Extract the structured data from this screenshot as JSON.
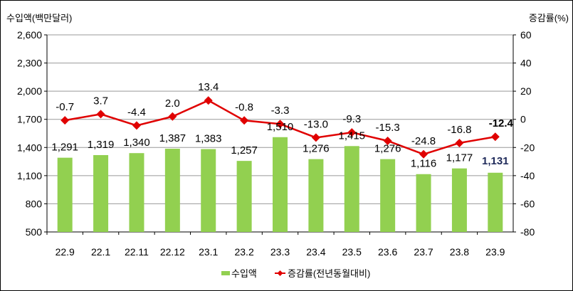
{
  "chart_data": {
    "type": "bar+line",
    "categories": [
      "22.9",
      "22.1",
      "22.11",
      "22.12",
      "23.1",
      "23.2",
      "23.3",
      "23.4",
      "23.5",
      "23.6",
      "23.7",
      "23.8",
      "23.9"
    ],
    "series": [
      {
        "name": "수입액",
        "type": "bar",
        "axis": "left",
        "color": "#92D050",
        "values": [
          1291,
          1319,
          1340,
          1387,
          1383,
          1257,
          1510,
          1276,
          1415,
          1276,
          1116,
          1177,
          1131
        ],
        "labels": [
          "1,291",
          "1,319",
          "1,340",
          "1,387",
          "1,383",
          "1,257",
          "1,510",
          "1,276",
          "1,415",
          "1,276",
          "1,116",
          "1,177",
          "1,131"
        ]
      },
      {
        "name": "증감률(전년동월대비)",
        "type": "line",
        "axis": "right",
        "color": "#E00000",
        "values": [
          -0.7,
          3.7,
          -4.4,
          2.0,
          13.4,
          -0.8,
          -3.3,
          -13.0,
          -9.3,
          -15.3,
          -24.8,
          -16.8,
          -12.4
        ],
        "labels": [
          "-0.7",
          "3.7",
          "-4.4",
          "2.0",
          "13.4",
          "-0.8",
          "-3.3",
          "-13.0",
          "-9.3",
          "-15.3",
          "-24.8",
          "-16.8",
          "-12.4"
        ]
      }
    ],
    "ylabel_left": "수입액(백만달러)",
    "ylabel_right": "증감률(%)",
    "ylim_left": [
      500,
      2600
    ],
    "ylim_right": [
      -80,
      60
    ],
    "yticks_left": [
      "2,600",
      "2,300",
      "2,000",
      "1,700",
      "1,400",
      "1,100",
      "800",
      "500"
    ],
    "yticks_right": [
      "60",
      "40",
      "20",
      "0",
      "-20",
      "-40",
      "-60",
      "-80"
    ],
    "grid": true,
    "legend_position": "bottom",
    "highlight_last_color": "#1F2A5A"
  }
}
